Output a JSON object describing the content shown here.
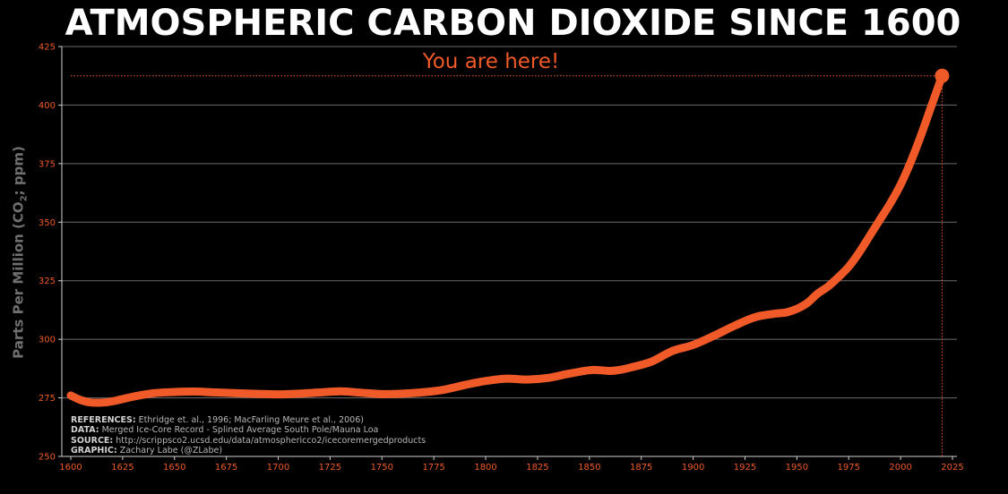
{
  "chart_data": {
    "type": "line",
    "title": "ATMOSPHERIC CARBON DIOXIDE SINCE 1600",
    "annotation": "You are here!",
    "ylabel": "Parts Per Million (CO2; ppm)",
    "xlim": [
      1600,
      2025
    ],
    "ylim": [
      250,
      425
    ],
    "x_ticks": [
      1600,
      1625,
      1650,
      1675,
      1700,
      1725,
      1750,
      1775,
      1800,
      1825,
      1850,
      1875,
      1900,
      1925,
      1950,
      1975,
      2000,
      2025
    ],
    "y_ticks": [
      250,
      275,
      300,
      325,
      350,
      375,
      400,
      425
    ],
    "grid": "horizontal",
    "series": [
      {
        "x": [
          1600,
          1605,
          1610,
          1615,
          1620,
          1630,
          1640,
          1650,
          1660,
          1670,
          1680,
          1690,
          1700,
          1710,
          1720,
          1730,
          1740,
          1750,
          1760,
          1770,
          1780,
          1790,
          1800,
          1810,
          1820,
          1830,
          1840,
          1850,
          1855,
          1860,
          1865,
          1870,
          1880,
          1890,
          1900,
          1910,
          1920,
          1930,
          1940,
          1945,
          1950,
          1955,
          1960,
          1965,
          1970,
          1975,
          1980,
          1985,
          1990,
          1995,
          2000,
          2005,
          2010,
          2015,
          2020
        ],
        "y": [
          276.0,
          274.0,
          273.0,
          273.0,
          273.5,
          275.5,
          277.0,
          277.5,
          277.7,
          277.3,
          277.0,
          276.7,
          276.5,
          276.8,
          277.3,
          277.8,
          277.2,
          276.6,
          276.8,
          277.4,
          278.5,
          280.5,
          282.2,
          283.2,
          282.8,
          283.5,
          285.3,
          286.8,
          286.8,
          286.5,
          287.0,
          288.0,
          290.5,
          295.0,
          297.6,
          301.5,
          305.8,
          309.5,
          311.0,
          311.5,
          313.0,
          315.5,
          319.5,
          322.5,
          326.5,
          331.0,
          337.0,
          344.0,
          351.0,
          358.0,
          366.0,
          376.0,
          387.5,
          400.0,
          412.5
        ]
      }
    ],
    "highlight_point": {
      "x": 2020,
      "y": 412.5
    },
    "colors": {
      "background": "#000000",
      "line": "#ef5a28",
      "grid": "#6b6b6b",
      "axis_text": "#ef5a28",
      "title": "#ffffff",
      "ylabel": "#6f6f6f"
    }
  },
  "references": [
    {
      "key": "REFERENCES:",
      "text": " Ethridge et. al., 1996; MacFarling Meure et al., 2006)"
    },
    {
      "key": "DATA:",
      "text": " Merged Ice-Core Record - Splined Average South Pole/Mauna Loa"
    },
    {
      "key": "SOURCE:",
      "text": " http://scrippsco2.ucsd.edu/data/atmosphericco2/icecoremergedproducts"
    },
    {
      "key": "GRAPHIC:",
      "text": " Zachary Labe (@ZLabe)"
    }
  ]
}
